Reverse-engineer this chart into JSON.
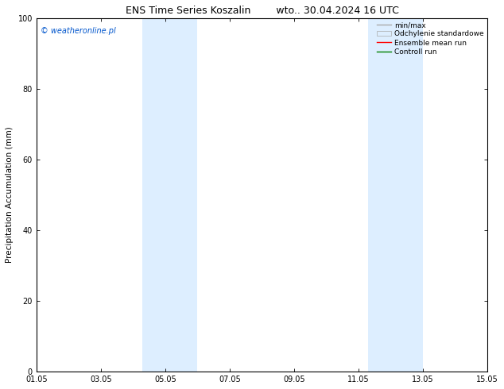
{
  "title_left": "ENS Time Series Koszalin",
  "title_right": "wto.. 30.04.2024 16 UTC",
  "xlabel_ticks": [
    "01.05",
    "03.05",
    "05.05",
    "07.05",
    "09.05",
    "11.05",
    "13.05",
    "15.05"
  ],
  "ylabel": "Precipitation Accumulation (mm)",
  "ylim": [
    0,
    100
  ],
  "xlim": [
    0,
    14
  ],
  "yticks": [
    0,
    20,
    40,
    60,
    80,
    100
  ],
  "background_color": "#ffffff",
  "plot_bg_color": "#ffffff",
  "shaded_regions": [
    {
      "xstart": 3.3,
      "xend": 5.0,
      "color": "#ddeeff"
    },
    {
      "xstart": 10.3,
      "xend": 12.0,
      "color": "#ddeeff"
    }
  ],
  "watermark_text": "© weatheronline.pl",
  "watermark_color": "#0055cc",
  "legend_items": [
    {
      "label": "min/max",
      "color": "#aaaaaa",
      "lw": 1.0,
      "ls": "-",
      "type": "line"
    },
    {
      "label": "Odchylenie standardowe",
      "color": "#ddeeff",
      "edgecolor": "#aaaaaa",
      "lw": 0.5,
      "type": "patch"
    },
    {
      "label": "Ensemble mean run",
      "color": "#ff0000",
      "lw": 1.0,
      "ls": "-",
      "type": "line"
    },
    {
      "label": "Controll run",
      "color": "#008000",
      "lw": 1.0,
      "ls": "-",
      "type": "line"
    }
  ],
  "tick_label_fontsize": 7,
  "axis_label_fontsize": 7.5,
  "title_fontsize": 9,
  "watermark_fontsize": 7,
  "legend_fontsize": 6.5
}
